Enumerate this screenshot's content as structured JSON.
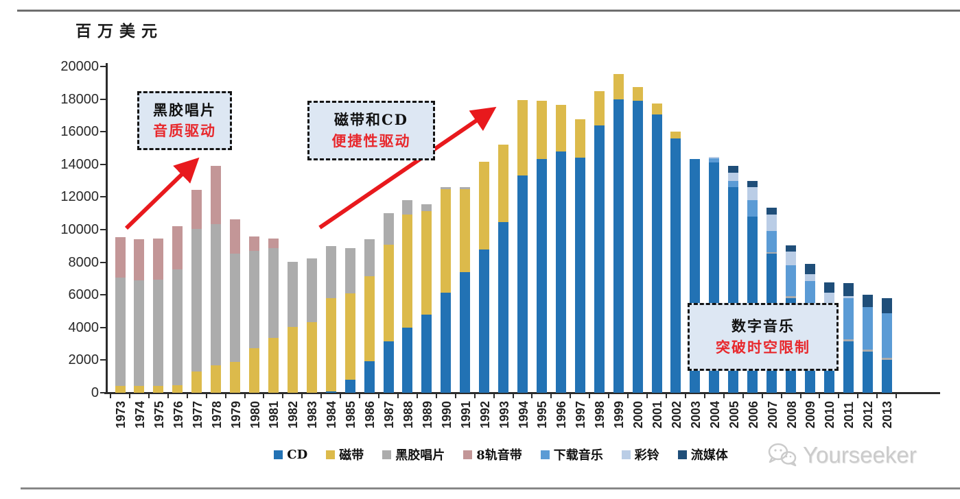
{
  "page": {
    "unit_label": "百万美元",
    "watermark_text": "Yourseeker"
  },
  "annotations": [
    {
      "line1": "黑胶唱片",
      "line2": "音质驱动"
    },
    {
      "line1": "磁带和CD",
      "line2": "便捷性驱动"
    },
    {
      "line1": "数字音乐",
      "line2": "突破时空限制"
    }
  ],
  "chart_data": {
    "type": "bar",
    "stacked": true,
    "title": "",
    "ylabel": "百万美元",
    "xlabel": "",
    "ylim": [
      0,
      20000
    ],
    "ytick_step": 2000,
    "grid": false,
    "legend_position": "bottom",
    "categories": [
      1973,
      1974,
      1975,
      1976,
      1977,
      1978,
      1979,
      1980,
      1981,
      1982,
      1983,
      1984,
      1985,
      1986,
      1987,
      1988,
      1989,
      1990,
      1991,
      1992,
      1993,
      1994,
      1995,
      1996,
      1997,
      1998,
      1999,
      2000,
      2001,
      2002,
      2003,
      2004,
      2005,
      2006,
      2007,
      2008,
      2009,
      2010,
      2011,
      2012,
      2013
    ],
    "series": [
      {
        "id": "cd",
        "name": "CD",
        "color": "#2272b4",
        "values": [
          0,
          0,
          0,
          0,
          0,
          0,
          0,
          0,
          0,
          0,
          0,
          100,
          800,
          1930,
          3150,
          4000,
          4790,
          6130,
          7390,
          8780,
          10460,
          13310,
          14320,
          14780,
          14400,
          16380,
          17980,
          17890,
          17050,
          15580,
          14320,
          14100,
          12600,
          10790,
          8530,
          5800,
          4900,
          3900,
          3150,
          2520,
          2020
        ]
      },
      {
        "id": "cassette",
        "name": "磁带",
        "color": "#dcba4b",
        "values": [
          420,
          420,
          420,
          460,
          1300,
          1680,
          1890,
          2730,
          3360,
          4030,
          4330,
          5700,
          5290,
          5210,
          5920,
          6920,
          6340,
          6360,
          5100,
          5370,
          4740,
          4640,
          3570,
          2860,
          2360,
          2100,
          1550,
          840,
          670,
          420,
          0,
          0,
          0,
          0,
          0,
          0,
          0,
          0,
          0,
          0,
          0
        ]
      },
      {
        "id": "vinyl",
        "name": "黑胶唱片",
        "color": "#acacac",
        "values": [
          6640,
          6470,
          6510,
          7100,
          8740,
          8650,
          6640,
          5960,
          5500,
          3990,
          3900,
          3190,
          2770,
          2270,
          1930,
          880,
          420,
          110,
          110,
          0,
          0,
          0,
          0,
          0,
          0,
          0,
          0,
          0,
          0,
          0,
          0,
          0,
          0,
          0,
          100,
          120,
          0,
          0,
          130,
          130,
          130
        ]
      },
      {
        "id": "eight-track",
        "name": "8轨音带",
        "color": "#c39697",
        "values": [
          2470,
          2510,
          2520,
          2640,
          2390,
          3570,
          2100,
          890,
          590,
          0,
          0,
          0,
          0,
          0,
          0,
          0,
          0,
          0,
          0,
          0,
          0,
          0,
          0,
          0,
          0,
          0,
          0,
          0,
          0,
          0,
          0,
          0,
          0,
          0,
          0,
          0,
          0,
          0,
          0,
          0,
          0
        ]
      },
      {
        "id": "download",
        "name": "下载音乐",
        "color": "#5b9bd5",
        "values": [
          0,
          0,
          0,
          0,
          0,
          0,
          0,
          0,
          0,
          0,
          0,
          0,
          0,
          0,
          0,
          0,
          0,
          0,
          0,
          0,
          0,
          0,
          0,
          0,
          0,
          0,
          0,
          0,
          0,
          0,
          0,
          250,
          400,
          1010,
          1280,
          1890,
          1950,
          1600,
          2520,
          2600,
          2730
        ]
      },
      {
        "id": "ringtone",
        "name": "彩铃",
        "color": "#bacde6",
        "values": [
          0,
          0,
          0,
          0,
          0,
          0,
          0,
          0,
          0,
          0,
          0,
          0,
          0,
          0,
          0,
          0,
          0,
          0,
          0,
          0,
          0,
          0,
          0,
          0,
          0,
          0,
          0,
          0,
          0,
          0,
          0,
          100,
          480,
          800,
          1010,
          840,
          420,
          630,
          120,
          0,
          0
        ]
      },
      {
        "id": "streaming",
        "name": "流媒体",
        "color": "#1f4e79",
        "values": [
          0,
          0,
          0,
          0,
          0,
          0,
          0,
          0,
          0,
          0,
          0,
          0,
          0,
          0,
          0,
          0,
          0,
          0,
          0,
          0,
          0,
          0,
          0,
          0,
          0,
          0,
          0,
          0,
          0,
          0,
          0,
          0,
          420,
          380,
          420,
          380,
          630,
          630,
          800,
          760,
          920
        ]
      }
    ]
  }
}
